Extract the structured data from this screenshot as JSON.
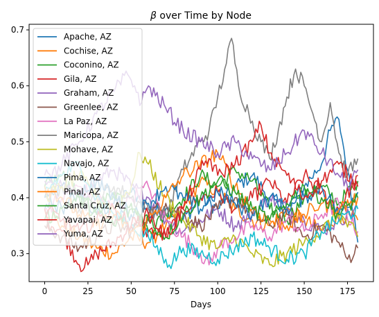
{
  "chart_data": {
    "type": "line",
    "title_beta": "β",
    "title_rest": " over Time by Node",
    "xlabel": "Days",
    "ylabel": "",
    "xlim": [
      -9,
      190
    ],
    "ylim": [
      0.25,
      0.71
    ],
    "xticks": [
      0,
      25,
      50,
      75,
      100,
      125,
      150,
      175
    ],
    "yticks": [
      0.3,
      0.4,
      0.5,
      0.6,
      0.7
    ],
    "ytick_labels": [
      "0.3",
      "0.4",
      "0.5",
      "0.6",
      "0.7"
    ],
    "grid": false,
    "legend_position": "top-left",
    "series": [
      {
        "name": "Apache, AZ",
        "color": "#1f77b4",
        "x": [
          0,
          10,
          20,
          30,
          40,
          50,
          55,
          60,
          70,
          80,
          90,
          100,
          110,
          120,
          130,
          140,
          150,
          160,
          165,
          170,
          175,
          181
        ],
        "y": [
          0.38,
          0.42,
          0.4,
          0.37,
          0.39,
          0.41,
          0.4,
          0.37,
          0.38,
          0.36,
          0.4,
          0.38,
          0.42,
          0.44,
          0.4,
          0.38,
          0.42,
          0.46,
          0.52,
          0.54,
          0.45,
          0.32
        ]
      },
      {
        "name": "Cochise, AZ",
        "color": "#ff7f0e",
        "x": [
          0,
          10,
          20,
          30,
          40,
          50,
          60,
          70,
          80,
          90,
          100,
          110,
          120,
          130,
          140,
          150,
          160,
          170,
          181
        ],
        "y": [
          0.38,
          0.35,
          0.33,
          0.31,
          0.3,
          0.33,
          0.32,
          0.35,
          0.38,
          0.43,
          0.41,
          0.38,
          0.36,
          0.35,
          0.38,
          0.36,
          0.34,
          0.37,
          0.36
        ]
      },
      {
        "name": "Coconino, AZ",
        "color": "#2ca02c",
        "x": [
          0,
          10,
          20,
          30,
          40,
          50,
          60,
          70,
          80,
          90,
          100,
          110,
          120,
          130,
          140,
          150,
          160,
          170,
          181
        ],
        "y": [
          0.42,
          0.44,
          0.4,
          0.38,
          0.41,
          0.39,
          0.34,
          0.37,
          0.4,
          0.44,
          0.42,
          0.45,
          0.43,
          0.38,
          0.36,
          0.4,
          0.42,
          0.39,
          0.43
        ]
      },
      {
        "name": "Gila, AZ",
        "color": "#d62728",
        "x": [
          0,
          10,
          20,
          25,
          30,
          40,
          50,
          60,
          70,
          80,
          90,
          100,
          110,
          120,
          130,
          140,
          150,
          160,
          170,
          181
        ],
        "y": [
          0.36,
          0.34,
          0.28,
          0.28,
          0.3,
          0.32,
          0.35,
          0.34,
          0.33,
          0.38,
          0.4,
          0.41,
          0.38,
          0.4,
          0.43,
          0.39,
          0.44,
          0.41,
          0.38,
          0.44
        ]
      },
      {
        "name": "Graham, AZ",
        "color": "#9467bd",
        "x": [
          0,
          10,
          20,
          30,
          40,
          50,
          60,
          70,
          80,
          90,
          100,
          110,
          120,
          130,
          140,
          150,
          160,
          170,
          181
        ],
        "y": [
          0.44,
          0.42,
          0.4,
          0.43,
          0.45,
          0.42,
          0.4,
          0.36,
          0.34,
          0.36,
          0.38,
          0.35,
          0.37,
          0.4,
          0.38,
          0.36,
          0.34,
          0.36,
          0.38
        ]
      },
      {
        "name": "Greenlee, AZ",
        "color": "#8c564b",
        "x": [
          0,
          10,
          20,
          30,
          40,
          50,
          60,
          70,
          80,
          90,
          100,
          110,
          120,
          130,
          140,
          150,
          160,
          170,
          175,
          181
        ],
        "y": [
          0.35,
          0.33,
          0.31,
          0.33,
          0.35,
          0.34,
          0.37,
          0.39,
          0.37,
          0.35,
          0.38,
          0.4,
          0.37,
          0.35,
          0.37,
          0.33,
          0.35,
          0.32,
          0.29,
          0.31
        ]
      },
      {
        "name": "La Paz, AZ",
        "color": "#e377c2",
        "x": [
          0,
          10,
          20,
          30,
          40,
          50,
          60,
          70,
          80,
          90,
          95,
          100,
          110,
          120,
          130,
          140,
          150,
          160,
          170,
          181
        ],
        "y": [
          0.38,
          0.4,
          0.42,
          0.4,
          0.38,
          0.4,
          0.42,
          0.36,
          0.33,
          0.3,
          0.28,
          0.31,
          0.33,
          0.35,
          0.33,
          0.36,
          0.34,
          0.37,
          0.39,
          0.34
        ]
      },
      {
        "name": "Maricopa, AZ",
        "color": "#7f7f7f",
        "x": [
          0,
          10,
          20,
          30,
          40,
          50,
          60,
          70,
          80,
          90,
          95,
          100,
          105,
          108,
          112,
          118,
          125,
          130,
          135,
          140,
          145,
          150,
          155,
          160,
          165,
          170,
          175,
          181
        ],
        "y": [
          0.4,
          0.42,
          0.38,
          0.4,
          0.42,
          0.4,
          0.38,
          0.37,
          0.45,
          0.5,
          0.52,
          0.58,
          0.64,
          0.685,
          0.6,
          0.55,
          0.5,
          0.47,
          0.52,
          0.58,
          0.63,
          0.6,
          0.55,
          0.5,
          0.57,
          0.48,
          0.44,
          0.47
        ]
      },
      {
        "name": "Mohave, AZ",
        "color": "#bcbd22",
        "x": [
          0,
          10,
          20,
          30,
          40,
          50,
          55,
          60,
          70,
          80,
          90,
          100,
          110,
          120,
          130,
          140,
          150,
          160,
          170,
          181
        ],
        "y": [
          0.4,
          0.42,
          0.44,
          0.4,
          0.38,
          0.42,
          0.48,
          0.46,
          0.4,
          0.36,
          0.33,
          0.31,
          0.33,
          0.3,
          0.28,
          0.3,
          0.32,
          0.34,
          0.37,
          0.33
        ]
      },
      {
        "name": "Navajo, AZ",
        "color": "#17becf",
        "x": [
          0,
          10,
          20,
          30,
          40,
          50,
          60,
          70,
          72,
          80,
          90,
          100,
          110,
          120,
          130,
          140,
          150,
          160,
          170,
          181
        ],
        "y": [
          0.41,
          0.44,
          0.46,
          0.4,
          0.37,
          0.35,
          0.33,
          0.29,
          0.28,
          0.31,
          0.3,
          0.29,
          0.31,
          0.33,
          0.31,
          0.29,
          0.3,
          0.34,
          0.36,
          0.38
        ]
      },
      {
        "name": "Pima, AZ",
        "color": "#1f77b4",
        "x": [
          0,
          10,
          20,
          30,
          40,
          50,
          60,
          70,
          80,
          90,
          100,
          110,
          120,
          130,
          140,
          150,
          160,
          170,
          181
        ],
        "y": [
          0.4,
          0.38,
          0.41,
          0.43,
          0.4,
          0.37,
          0.39,
          0.42,
          0.4,
          0.38,
          0.41,
          0.39,
          0.37,
          0.4,
          0.38,
          0.4,
          0.42,
          0.37,
          0.41
        ]
      },
      {
        "name": "Pinal, AZ",
        "color": "#ff7f0e",
        "x": [
          0,
          10,
          20,
          30,
          40,
          50,
          60,
          70,
          80,
          90,
          100,
          110,
          120,
          130,
          140,
          150,
          160,
          170,
          181
        ],
        "y": [
          0.42,
          0.4,
          0.37,
          0.35,
          0.37,
          0.34,
          0.36,
          0.4,
          0.44,
          0.46,
          0.48,
          0.42,
          0.38,
          0.36,
          0.35,
          0.37,
          0.39,
          0.38,
          0.4
        ]
      },
      {
        "name": "Santa Cruz, AZ",
        "color": "#2ca02c",
        "x": [
          0,
          10,
          20,
          30,
          40,
          50,
          60,
          70,
          80,
          90,
          100,
          110,
          120,
          130,
          140,
          150,
          160,
          170,
          181
        ],
        "y": [
          0.36,
          0.38,
          0.4,
          0.37,
          0.35,
          0.38,
          0.36,
          0.33,
          0.37,
          0.4,
          0.43,
          0.41,
          0.38,
          0.36,
          0.39,
          0.42,
          0.4,
          0.37,
          0.4
        ]
      },
      {
        "name": "Yavapai, AZ",
        "color": "#d62728",
        "x": [
          0,
          10,
          20,
          30,
          40,
          50,
          60,
          70,
          80,
          90,
          95,
          100,
          110,
          120,
          125,
          130,
          140,
          150,
          160,
          170,
          181
        ],
        "y": [
          0.38,
          0.36,
          0.34,
          0.36,
          0.38,
          0.35,
          0.37,
          0.33,
          0.38,
          0.45,
          0.47,
          0.44,
          0.46,
          0.5,
          0.53,
          0.48,
          0.44,
          0.4,
          0.43,
          0.46,
          0.42
        ]
      },
      {
        "name": "Yuma, AZ",
        "color": "#9467bd",
        "x": [
          0,
          10,
          20,
          30,
          40,
          48,
          52,
          56,
          60,
          70,
          80,
          90,
          100,
          110,
          120,
          130,
          140,
          150,
          160,
          170,
          175,
          181
        ],
        "y": [
          0.43,
          0.46,
          0.5,
          0.55,
          0.59,
          0.62,
          0.6,
          0.57,
          0.6,
          0.56,
          0.52,
          0.5,
          0.48,
          0.5,
          0.47,
          0.45,
          0.48,
          0.52,
          0.48,
          0.44,
          0.42,
          0.45
        ]
      }
    ]
  }
}
